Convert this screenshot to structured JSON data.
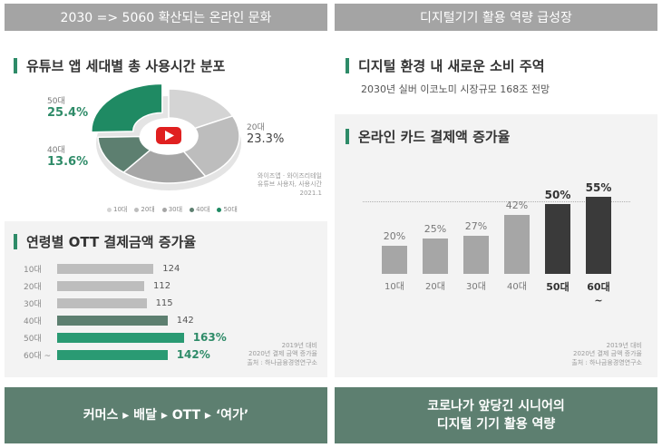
{
  "headers": {
    "left": "2030 => 5060 확산되는 온라인 문화",
    "right": "디지털기기 활용 역량 급성장"
  },
  "youtube": {
    "title": "유튜브 앱 세대별 총 사용시간 분포",
    "label_50": "50대",
    "value_50": "25.4%",
    "label_40": "40대",
    "value_40": "13.6%",
    "label_20": "20대",
    "value_20": "23.3%",
    "source": [
      "와이즈앱 · 와이즈리테일",
      "유튜브 사용자, 사용시간",
      "2021.1"
    ],
    "legend": [
      {
        "label": "10대",
        "color": "#d4d4d4"
      },
      {
        "label": "20대",
        "color": "#bdbdbd"
      },
      {
        "label": "30대",
        "color": "#a6a6a6"
      },
      {
        "label": "40대",
        "color": "#5d7f70"
      },
      {
        "label": "50대",
        "color": "#1f8a63"
      }
    ]
  },
  "ott": {
    "title": "연령별 OTT 결제금액 증가율",
    "source": [
      "2019년 대비",
      "2020년 결제 금액 증가율",
      "출처 : 하나금융경영연구소"
    ]
  },
  "digital": {
    "title": "디지털 환경 내 새로운 소비 주역",
    "subtitle": "2030년 실버 이코노미 시장규모 168조 전망"
  },
  "card": {
    "title": "온라인 카드 결제액 증가율",
    "source": [
      "2019년 대비",
      "2020년 결제 금액 증가율",
      "출처 : 하나금융경영연구소"
    ]
  },
  "footers": {
    "left": "커머스 ▸ 배달 ▸ OTT ▸ ‘여가’",
    "right_line1": "코로나가 앞당긴 시니어의",
    "right_line2": "디지털 기기 활용 역량"
  },
  "chart_data": [
    {
      "type": "pie",
      "title": "유튜브 앱 세대별 총 사용시간 분포",
      "categories": [
        "10대",
        "20대",
        "30대",
        "40대",
        "50대"
      ],
      "values": [
        18.0,
        23.3,
        19.7,
        13.6,
        25.4
      ],
      "colors": [
        "#d4d4d4",
        "#bdbdbd",
        "#a6a6a6",
        "#5d7f70",
        "#1f8a63"
      ],
      "labeled": [
        "20대",
        "40대",
        "50대"
      ],
      "legend": "bottom"
    },
    {
      "type": "bar",
      "orientation": "horizontal",
      "title": "연령별 OTT 결제금액 증가율",
      "categories": [
        "10대",
        "20대",
        "30대",
        "40대",
        "50대",
        "60대 ~"
      ],
      "values": [
        124,
        112,
        115,
        142,
        163,
        142
      ],
      "labels": [
        "124",
        "112",
        "115",
        "142",
        "163%",
        "142%"
      ],
      "colors": [
        "#bdbdbd",
        "#bdbdbd",
        "#bdbdbd",
        "#5d7f70",
        "#2a9a73",
        "#2a9a73"
      ],
      "highlight": [
        false,
        false,
        false,
        false,
        true,
        true
      ],
      "xlim": [
        0,
        175
      ]
    },
    {
      "type": "bar",
      "title": "온라인 카드 결제액 증가율",
      "categories": [
        "10대",
        "20대",
        "30대",
        "40대",
        "50대",
        "60대\n~"
      ],
      "values": [
        20,
        25,
        27,
        42,
        50,
        55
      ],
      "labels": [
        "20%",
        "25%",
        "27%",
        "42%",
        "50%",
        "55%"
      ],
      "colors": [
        "#a6a6a6",
        "#a6a6a6",
        "#a6a6a6",
        "#a6a6a6",
        "#3a3a3a",
        "#3a3a3a"
      ],
      "highlight": [
        false,
        false,
        false,
        false,
        true,
        true
      ],
      "ylim": [
        0,
        55
      ]
    }
  ]
}
